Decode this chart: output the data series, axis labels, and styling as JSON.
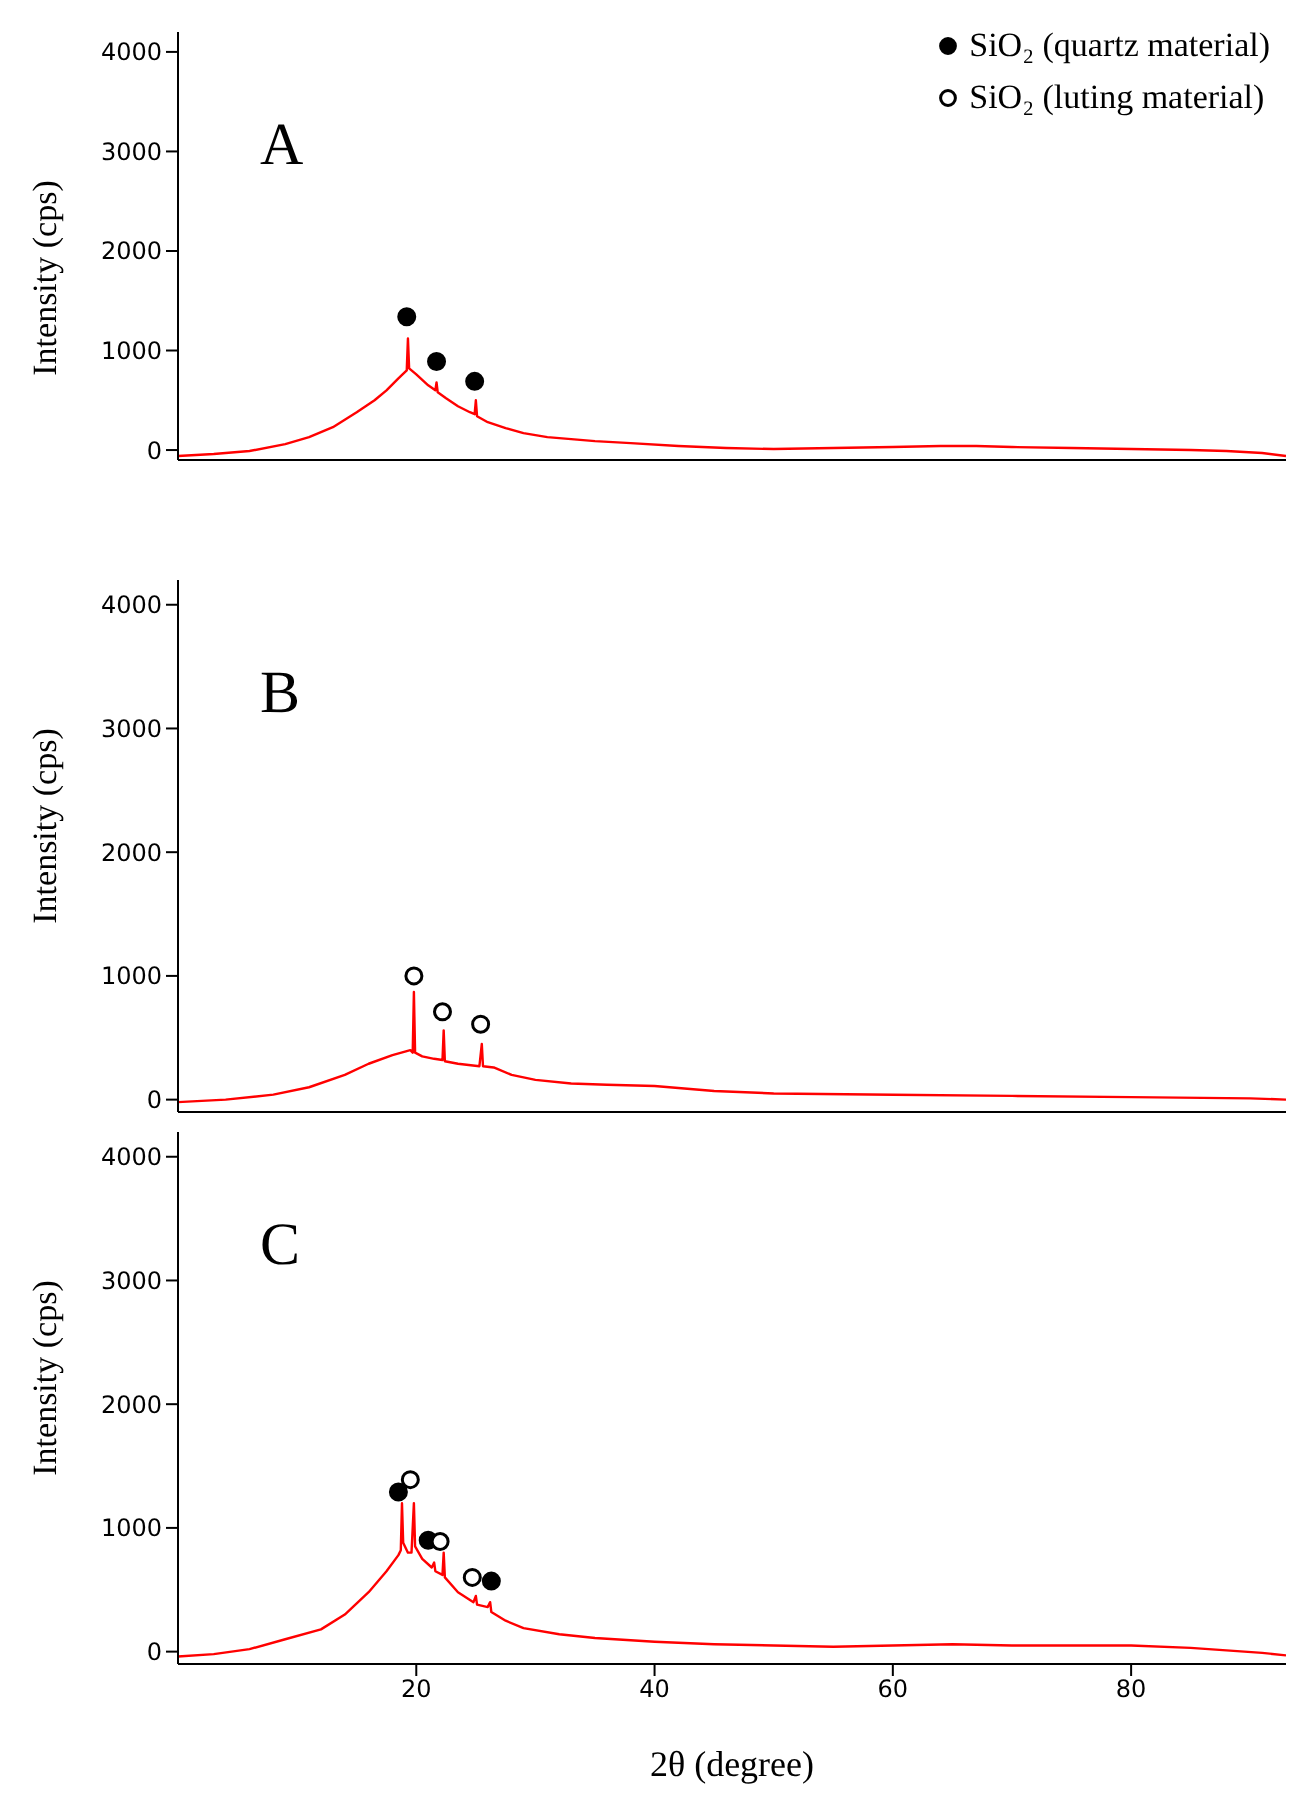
{
  "chart_data": [
    {
      "type": "line",
      "ylabel": "Intensity (cps)",
      "annotations": [
        "A"
      ],
      "xlim": [
        0,
        93
      ],
      "xticks": [
        20,
        40,
        60,
        80
      ],
      "ylim": [
        -100,
        4200
      ],
      "yticks": [
        0,
        1000,
        2000,
        3000,
        4000
      ],
      "tick_labels": "y",
      "legend": "top right",
      "marker": "none",
      "line_style": "solid",
      "series": [
        {
          "color": "#ff0000",
          "x": [
            0,
            3,
            6,
            9,
            11,
            13,
            15,
            16.5,
            17.5,
            18.5,
            19.2,
            19.3,
            19.4,
            20,
            21,
            21.6,
            21.7,
            21.8,
            22.5,
            23.5,
            24.5,
            24.9,
            25,
            25.1,
            26,
            27.5,
            29,
            31,
            33,
            35,
            38,
            42,
            46,
            50,
            55,
            60,
            64,
            67,
            70,
            75,
            80,
            85,
            88,
            91,
            93
          ],
          "values": [
            -60,
            -40,
            -10,
            60,
            130,
            230,
            380,
            500,
            600,
            720,
            800,
            1120,
            820,
            760,
            650,
            600,
            680,
            580,
            520,
            440,
            380,
            360,
            500,
            340,
            280,
            220,
            170,
            130,
            110,
            90,
            70,
            40,
            20,
            10,
            20,
            30,
            40,
            40,
            30,
            20,
            10,
            0,
            -10,
            -30,
            -60
          ]
        },
        {
          "type": "scatter",
          "name": "SiO₂  (quartz material)",
          "color": "#000000",
          "marker": "circle",
          "x": [
            19.2,
            21.7,
            24.9
          ],
          "values": [
            1340,
            890,
            690
          ]
        }
      ]
    },
    {
      "type": "line",
      "ylabel": "Intensity (cps)",
      "annotations": [
        "B"
      ],
      "xlim": [
        0,
        93
      ],
      "xticks": [
        20,
        40,
        60,
        80
      ],
      "ylim": [
        -100,
        4200
      ],
      "yticks": [
        0,
        1000,
        2000,
        3000,
        4000
      ],
      "tick_labels": "y",
      "marker": "none",
      "line_style": "solid",
      "series": [
        {
          "color": "#ff0000",
          "x": [
            0,
            4,
            8,
            11,
            14,
            16,
            18,
            19.5,
            19.7,
            19.8,
            19.9,
            20.5,
            21.5,
            22.2,
            22.3,
            22.4,
            23.5,
            25.3,
            25.5,
            25.6,
            26.5,
            28,
            30,
            33,
            36,
            40,
            45,
            50,
            60,
            70,
            80,
            90,
            93
          ],
          "values": [
            -20,
            0,
            40,
            100,
            200,
            290,
            360,
            400,
            380,
            870,
            380,
            350,
            330,
            320,
            560,
            310,
            290,
            270,
            450,
            270,
            260,
            200,
            160,
            130,
            120,
            110,
            70,
            50,
            40,
            30,
            20,
            10,
            0
          ]
        },
        {
          "type": "scatter",
          "name": "SiO₂  (luting material)",
          "color": "#ffffff",
          "marker": "circle",
          "x": [
            19.8,
            22.2,
            25.4
          ],
          "values": [
            1000,
            710,
            610
          ]
        }
      ]
    },
    {
      "type": "line",
      "xlabel": "2θ (degree)",
      "ylabel": "Intensity (cps)",
      "annotations": [
        "C"
      ],
      "xlim": [
        0,
        93
      ],
      "xticks": [
        20,
        40,
        60,
        80
      ],
      "ylim": [
        -100,
        4200
      ],
      "yticks": [
        0,
        1000,
        2000,
        3000,
        4000
      ],
      "marker": "none",
      "line_style": "solid",
      "series": [
        {
          "color": "#ff0000",
          "x": [
            0,
            3,
            6,
            9,
            12,
            14,
            16,
            17.5,
            18.5,
            18.7,
            18.8,
            18.9,
            19.3,
            19.6,
            19.8,
            19.9,
            20.5,
            21.3,
            21.5,
            21.6,
            22.2,
            22.3,
            22.4,
            23.5,
            24.8,
            25,
            25.1,
            26,
            26.2,
            26.3,
            27.5,
            29,
            32,
            35,
            40,
            45,
            50,
            55,
            60,
            65,
            70,
            75,
            80,
            85,
            88,
            91,
            93
          ],
          "values": [
            -40,
            -20,
            20,
            100,
            180,
            300,
            480,
            650,
            780,
            820,
            1200,
            880,
            800,
            800,
            1200,
            850,
            750,
            680,
            720,
            650,
            620,
            800,
            600,
            480,
            400,
            450,
            380,
            360,
            400,
            320,
            250,
            190,
            140,
            110,
            80,
            60,
            50,
            40,
            50,
            60,
            50,
            50,
            50,
            30,
            10,
            -10,
            -30
          ]
        },
        {
          "type": "scatter",
          "color": "#000000",
          "marker": "circle",
          "x": [
            18.5,
            21.0,
            26.3
          ],
          "values": [
            1290,
            900,
            570
          ]
        },
        {
          "type": "scatter",
          "color": "#ffffff",
          "marker": "circle",
          "x": [
            19.5,
            22.0,
            24.7
          ],
          "values": [
            1390,
            890,
            600
          ]
        }
      ]
    }
  ]
}
